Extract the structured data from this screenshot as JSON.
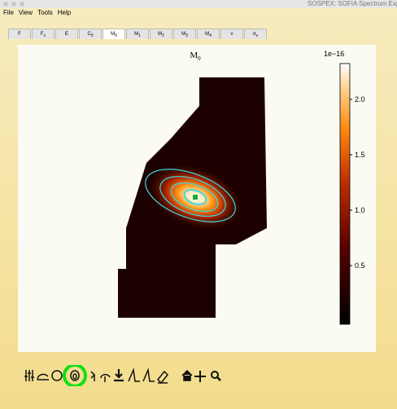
{
  "window": {
    "title": "SOSPEX: SOFIA Spectrum Explo"
  },
  "menu": [
    "File",
    "View",
    "Tools",
    "Help"
  ],
  "tabs": [
    {
      "label": "F"
    },
    {
      "label": "F",
      "sub": "c"
    },
    {
      "label": "E"
    },
    {
      "label": "C",
      "sub": "0"
    },
    {
      "label": "M",
      "sub": "0"
    },
    {
      "label": "M",
      "sub": "1"
    },
    {
      "label": "M",
      "sub": "2"
    },
    {
      "label": "M",
      "sub": "3"
    },
    {
      "label": "M",
      "sub": "4"
    },
    {
      "label": "ν"
    },
    {
      "label": "σ",
      "sub": "v"
    }
  ],
  "plot": {
    "title": {
      "label": "M",
      "sub": "0"
    },
    "colorbar": {
      "exponent": "1e−16",
      "ticks": [
        "2.0",
        "1.5",
        "1.0",
        "0.5"
      ]
    }
  }
}
